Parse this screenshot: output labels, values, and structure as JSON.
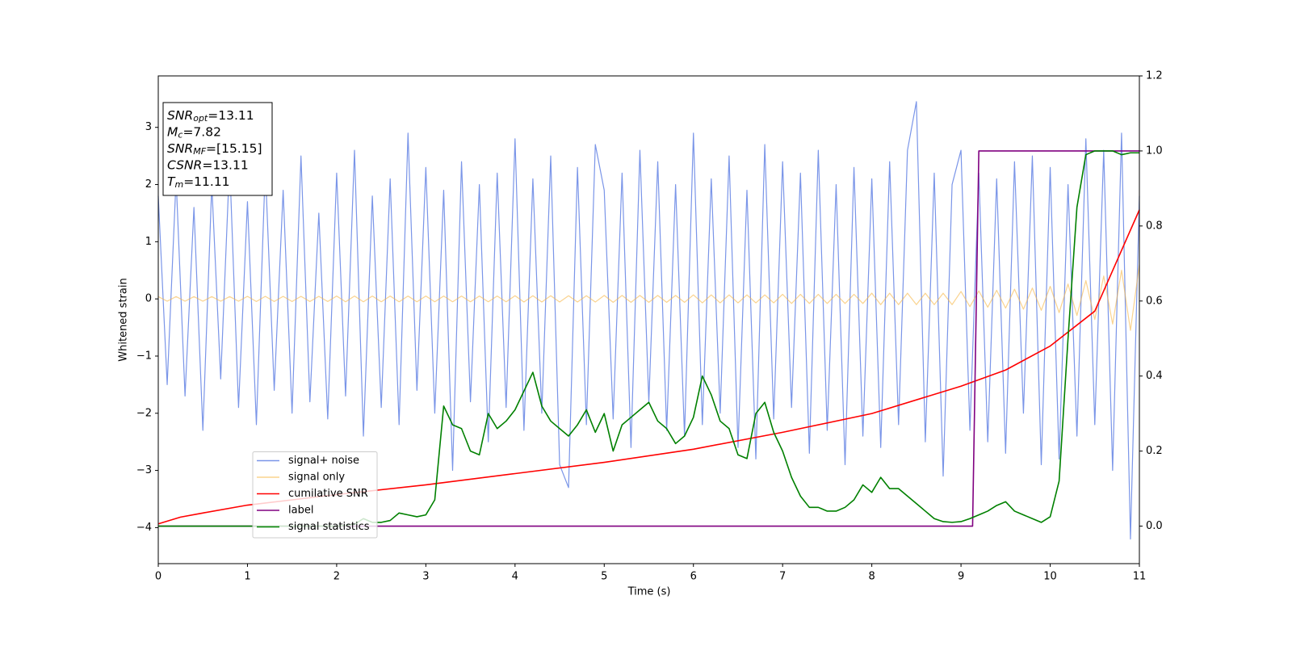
{
  "chart_data": {
    "type": "line",
    "xlabel": "Time (s)",
    "ylabel": "Whitened strain",
    "xlim": [
      0,
      11
    ],
    "ylim": [
      -4.63,
      3.9
    ],
    "y2lim": [
      -0.1,
      1.2
    ],
    "xticks": [
      0,
      1,
      2,
      3,
      4,
      5,
      6,
      7,
      8,
      9,
      10,
      11
    ],
    "yticks": [
      {
        "value": -4,
        "label": "−4"
      },
      {
        "value": -3,
        "label": "−3"
      },
      {
        "value": -2,
        "label": "−2"
      },
      {
        "value": -1,
        "label": "−1"
      },
      0,
      1,
      2,
      3
    ],
    "y2ticks": [
      {
        "value": 0,
        "label": "0.0"
      },
      0.2,
      0.4,
      0.6,
      0.8,
      {
        "value": 1,
        "label": "1.0"
      },
      1.2
    ],
    "legend": "lower left",
    "annotations": [
      {
        "name": "SNR",
        "sub": "opt",
        "text": "=13.11"
      },
      {
        "name": "M",
        "sub": "c",
        "text": "=7.82"
      },
      {
        "name": "SNR",
        "sub": "MF",
        "text": "=[15.15]"
      },
      {
        "name": "CSNR",
        "text": "=13.11"
      },
      {
        "name": "T",
        "sub": "m",
        "text": "=11.11"
      }
    ],
    "x": [
      0,
      0.1,
      0.2,
      0.3,
      0.4,
      0.5,
      0.6,
      0.7,
      0.8,
      0.9,
      1,
      1.1,
      1.2,
      1.3,
      1.4,
      1.5,
      1.6,
      1.7,
      1.8,
      1.9,
      2,
      2.1,
      2.2,
      2.3,
      2.4,
      2.5,
      2.6,
      2.7,
      2.8,
      2.9,
      3,
      3.1,
      3.2,
      3.3,
      3.4,
      3.5,
      3.6,
      3.7,
      3.8,
      3.9,
      4,
      4.1,
      4.2,
      4.3,
      4.4,
      4.5,
      4.6,
      4.7,
      4.8,
      4.9,
      5,
      5.1,
      5.2,
      5.3,
      5.4,
      5.5,
      5.6,
      5.7,
      5.8,
      5.9,
      6,
      6.1,
      6.2,
      6.3,
      6.4,
      6.5,
      6.6,
      6.7,
      6.8,
      6.9,
      7,
      7.1,
      7.2,
      7.3,
      7.4,
      7.5,
      7.6,
      7.7,
      7.8,
      7.9,
      8,
      8.1,
      8.2,
      8.3,
      8.4,
      8.5,
      8.6,
      8.7,
      8.8,
      8.9,
      9,
      9.1,
      9.2,
      9.3,
      9.4,
      9.5,
      9.6,
      9.7,
      9.8,
      9.9,
      10,
      10.1,
      10.2,
      10.3,
      10.4,
      10.5,
      10.6,
      10.7,
      10.8,
      10.9,
      11
    ],
    "series": [
      {
        "name": "signal+ noise",
        "color": "#7a95e8",
        "values": [
          1.8,
          -1.5,
          2.1,
          -1.7,
          1.6,
          -2.3,
          2.0,
          -1.4,
          2.4,
          -1.9,
          1.7,
          -2.2,
          2.3,
          -1.6,
          1.9,
          -2.0,
          2.5,
          -1.8,
          1.5,
          -2.1,
          2.2,
          -1.7,
          2.6,
          -2.4,
          1.8,
          -1.9,
          2.1,
          -2.2,
          2.9,
          -1.6,
          2.3,
          -2.0,
          1.9,
          -3.0,
          2.4,
          -1.8,
          2.0,
          -2.5,
          2.2,
          -1.9,
          2.8,
          -2.3,
          2.1,
          -2.0,
          2.5,
          -2.9,
          -3.3,
          2.3,
          -2.2,
          2.7,
          1.9,
          -2.1,
          2.2,
          -2.6,
          2.6,
          -1.8,
          2.4,
          -2.3,
          2.0,
          -2.4,
          2.9,
          -2.2,
          2.1,
          -2.0,
          2.5,
          -2.6,
          1.9,
          -2.8,
          2.7,
          -2.1,
          2.4,
          -1.9,
          2.2,
          -2.7,
          2.6,
          -2.3,
          2.0,
          -2.9,
          2.3,
          -2.4,
          2.1,
          -2.6,
          2.4,
          -2.2,
          2.6,
          3.45,
          -2.5,
          2.2,
          -3.1,
          2.0,
          2.6,
          -2.3,
          2.2,
          -2.5,
          2.1,
          -2.7,
          2.4,
          -2.0,
          2.5,
          -2.9,
          2.3,
          -2.8,
          2.0,
          -2.4,
          2.8,
          -2.2,
          2.6,
          -3.0,
          2.9,
          -4.2,
          1.8
        ]
      },
      {
        "name": "signal only",
        "color": "#f7b544",
        "values": [
          0.04,
          -0.04,
          0.04,
          -0.04,
          0.04,
          -0.04,
          0.04,
          -0.04,
          0.04,
          -0.04,
          0.045,
          -0.045,
          0.045,
          -0.045,
          0.045,
          -0.045,
          0.045,
          -0.045,
          0.045,
          -0.045,
          0.05,
          -0.05,
          0.05,
          -0.05,
          0.05,
          -0.05,
          0.05,
          -0.05,
          0.05,
          -0.05,
          0.05,
          -0.05,
          0.05,
          -0.05,
          0.05,
          -0.05,
          0.05,
          -0.05,
          0.05,
          -0.05,
          0.055,
          -0.055,
          0.055,
          -0.055,
          0.055,
          -0.055,
          0.055,
          -0.055,
          0.055,
          -0.055,
          0.06,
          -0.06,
          0.06,
          -0.06,
          0.06,
          -0.06,
          0.06,
          -0.06,
          0.06,
          -0.06,
          0.07,
          -0.07,
          0.07,
          -0.07,
          0.07,
          -0.07,
          0.07,
          -0.07,
          0.07,
          -0.07,
          0.08,
          -0.08,
          0.08,
          -0.08,
          0.08,
          -0.08,
          0.08,
          -0.08,
          0.08,
          -0.08,
          0.1,
          -0.1,
          0.1,
          -0.1,
          0.1,
          -0.1,
          0.1,
          -0.1,
          0.1,
          -0.1,
          0.13,
          -0.135,
          0.14,
          -0.145,
          0.15,
          -0.16,
          0.17,
          -0.18,
          0.19,
          -0.2,
          0.22,
          -0.24,
          0.26,
          -0.29,
          0.32,
          -0.36,
          0.4,
          -0.44,
          0.5,
          -0.55,
          0.6
        ]
      },
      {
        "name": "cumilative SNR",
        "color": "#ff0000",
        "axis": "y2",
        "x": [
          0,
          0.25,
          0.5,
          1,
          2,
          3,
          4,
          5,
          6,
          7,
          8,
          9,
          9.5,
          10,
          10.5,
          11
        ],
        "values": [
          0.006,
          0.024,
          0.035,
          0.056,
          0.084,
          0.11,
          0.14,
          0.17,
          0.205,
          0.25,
          0.3,
          0.373,
          0.416,
          0.48,
          0.573,
          0.843
        ]
      },
      {
        "name": "label",
        "color": "#800080",
        "axis": "y2",
        "x": [
          0,
          9.13,
          9.2,
          11
        ],
        "values": [
          0,
          0,
          1,
          1
        ]
      },
      {
        "name": "signal statistics",
        "color": "#008000",
        "axis": "y2",
        "values": [
          0,
          0,
          0,
          0,
          0,
          0,
          0,
          0,
          0,
          0,
          0,
          0,
          0,
          0,
          0,
          0,
          0,
          0,
          0,
          0,
          0,
          0.002,
          0.005,
          0.02,
          0.01,
          0.01,
          0.015,
          0.035,
          0.03,
          0.025,
          0.03,
          0.07,
          0.32,
          0.27,
          0.26,
          0.2,
          0.19,
          0.3,
          0.26,
          0.28,
          0.31,
          0.36,
          0.41,
          0.32,
          0.28,
          0.26,
          0.24,
          0.27,
          0.31,
          0.25,
          0.3,
          0.2,
          0.27,
          0.29,
          0.31,
          0.33,
          0.28,
          0.26,
          0.22,
          0.24,
          0.29,
          0.4,
          0.35,
          0.28,
          0.26,
          0.19,
          0.18,
          0.3,
          0.33,
          0.25,
          0.2,
          0.13,
          0.08,
          0.05,
          0.05,
          0.04,
          0.04,
          0.05,
          0.07,
          0.11,
          0.09,
          0.13,
          0.1,
          0.1,
          0.08,
          0.06,
          0.04,
          0.02,
          0.012,
          0.01,
          0.012,
          0.02,
          0.03,
          0.04,
          0.055,
          0.065,
          0.04,
          0.03,
          0.02,
          0.01,
          0.025,
          0.12,
          0.5,
          0.85,
          0.99,
          1.0,
          1.0,
          1.0,
          0.99,
          0.995,
          0.995
        ]
      }
    ]
  }
}
